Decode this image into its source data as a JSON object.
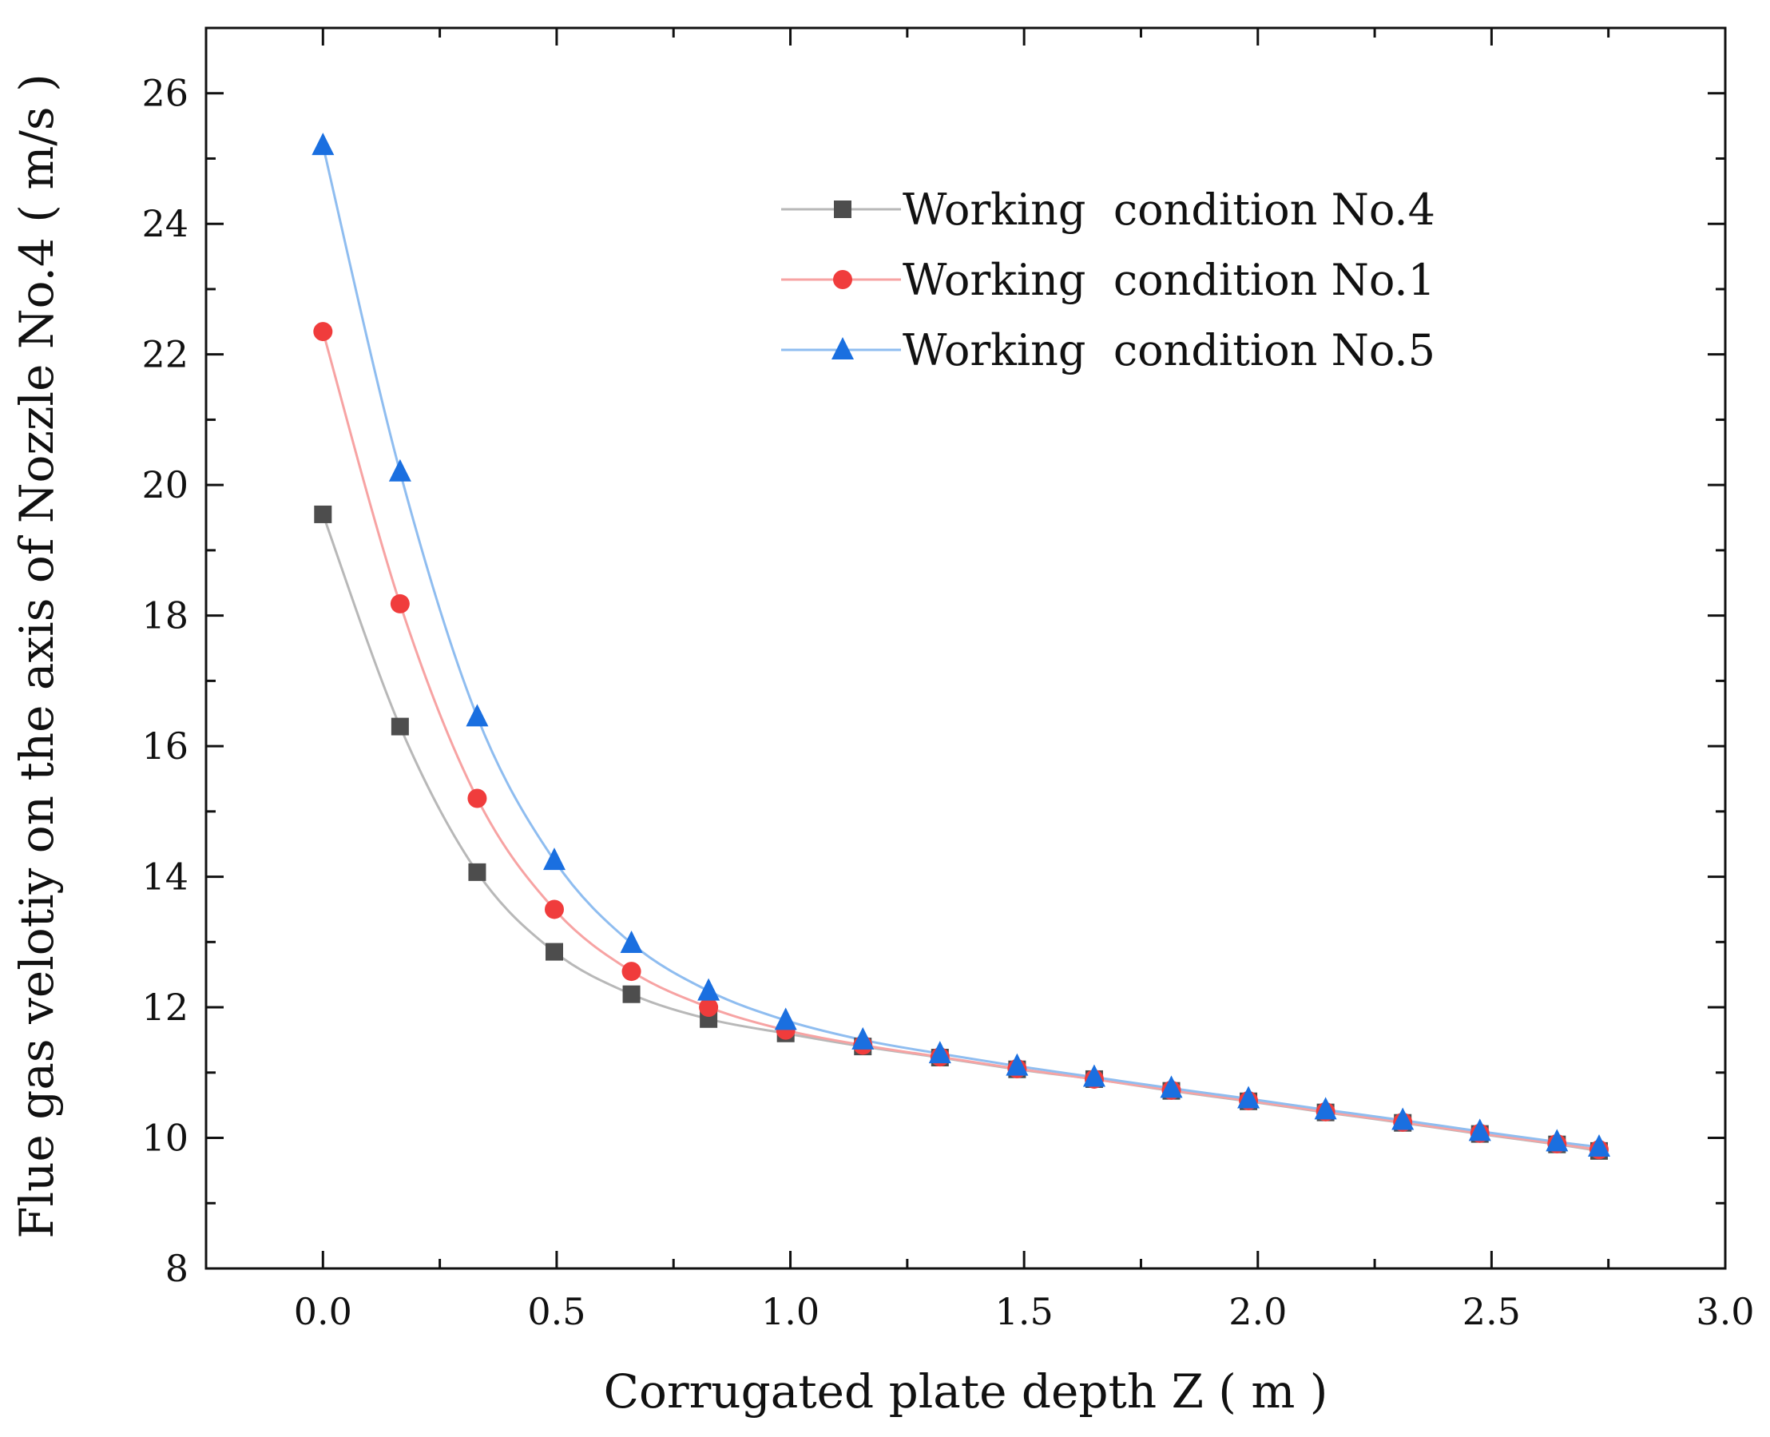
{
  "chart_data": {
    "type": "line",
    "title": "",
    "xlabel": "Corrugated plate depth Z ( m )",
    "ylabel": "Flue gas velotiy on the axis of Nozzle No.4 ( m/s )",
    "xlim": [
      -0.25,
      3.0
    ],
    "ylim": [
      8,
      27
    ],
    "xticks": [
      0.0,
      0.5,
      1.0,
      1.5,
      2.0,
      2.5,
      3.0
    ],
    "xtick_labels": [
      "0.0",
      "0.5",
      "1.0",
      "1.5",
      "2.0",
      "2.5",
      "3.0"
    ],
    "yticks": [
      8,
      10,
      12,
      14,
      16,
      18,
      20,
      22,
      24,
      26
    ],
    "ytick_labels": [
      "8",
      "10",
      "12",
      "14",
      "16",
      "18",
      "20",
      "22",
      "24",
      "26"
    ],
    "grid": false,
    "legend_position": "top-right",
    "x": [
      0.0,
      0.165,
      0.33,
      0.495,
      0.66,
      0.825,
      0.99,
      1.155,
      1.32,
      1.485,
      1.65,
      1.815,
      1.98,
      2.145,
      2.31,
      2.475,
      2.64,
      2.73
    ],
    "series": [
      {
        "name": "Working  condition No.4",
        "marker": "square",
        "color": "#4d4d4d",
        "line_color": "#b8b8b8",
        "values": [
          19.55,
          16.3,
          14.07,
          12.85,
          12.2,
          11.82,
          11.6,
          11.4,
          11.23,
          11.05,
          10.9,
          10.72,
          10.56,
          10.39,
          10.23,
          10.06,
          9.9,
          9.8
        ]
      },
      {
        "name": "Working  condition No.1",
        "marker": "circle",
        "color": "#f03c3c",
        "line_color": "#f7a3a3",
        "values": [
          22.35,
          18.18,
          15.2,
          13.5,
          12.55,
          12.0,
          11.65,
          11.42,
          11.24,
          11.06,
          10.9,
          10.73,
          10.57,
          10.4,
          10.24,
          10.07,
          9.91,
          9.82
        ]
      },
      {
        "name": "Working  condition No.5",
        "marker": "triangle",
        "color": "#1a6fe0",
        "line_color": "#8fbdf0",
        "values": [
          25.2,
          20.2,
          16.45,
          14.25,
          12.98,
          12.25,
          11.8,
          11.5,
          11.29,
          11.1,
          10.93,
          10.76,
          10.6,
          10.43,
          10.27,
          10.1,
          9.94,
          9.86
        ]
      }
    ]
  }
}
